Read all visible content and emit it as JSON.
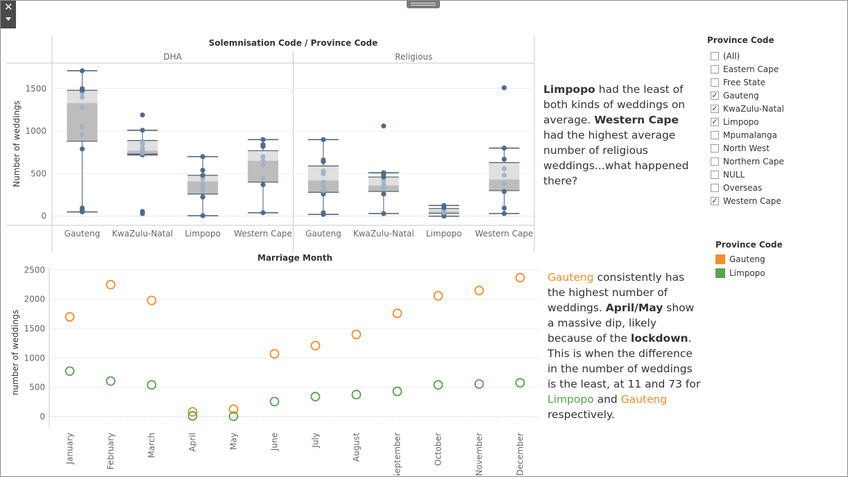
{
  "chart_data": [
    {
      "type": "boxplot",
      "title": "Solemnisation Code  /  Province Code",
      "ylabel": "Number of weddings",
      "ylim": [
        -100,
        1800
      ],
      "yticks": [
        0,
        500,
        1000,
        1500
      ],
      "panels": [
        {
          "name": "DHA",
          "groups": [
            {
              "category": "Gauteng",
              "min": 50,
              "q1": 880,
              "median": 1330,
              "q3": 1480,
              "max": 1710,
              "points": [
                50,
                70,
                95,
                790,
                960,
                1050,
                1280,
                1400,
                1450,
                1480,
                1500,
                1710
              ]
            },
            {
              "category": "KwaZulu-Natal",
              "min": 720,
              "q1": 730,
              "median": 770,
              "q3": 890,
              "max": 1010,
              "points": [
                30,
                55,
                720,
                740,
                760,
                780,
                800,
                850,
                880,
                1010,
                1190
              ]
            },
            {
              "category": "Limpopo",
              "min": 5,
              "q1": 260,
              "median": 410,
              "q3": 480,
              "max": 700,
              "points": [
                5,
                225,
                300,
                340,
                380,
                440,
                480,
                540,
                700
              ]
            },
            {
              "category": "Western Cape",
              "min": 40,
              "q1": 400,
              "median": 650,
              "q3": 770,
              "max": 900,
              "points": [
                40,
                370,
                440,
                600,
                650,
                700,
                820,
                840,
                900
              ]
            }
          ]
        },
        {
          "name": "Religious",
          "groups": [
            {
              "category": "Gauteng",
              "min": 20,
              "q1": 280,
              "median": 420,
              "q3": 590,
              "max": 900,
              "points": [
                20,
                40,
                260,
                300,
                350,
                400,
                500,
                530,
                640,
                660,
                900
              ]
            },
            {
              "category": "KwaZulu-Natal",
              "min": 30,
              "q1": 290,
              "median": 360,
              "q3": 460,
              "max": 510,
              "points": [
                30,
                260,
                330,
                370,
                420,
                460,
                490,
                510,
                1060
              ]
            },
            {
              "category": "Limpopo",
              "min": 0,
              "q1": 30,
              "median": 55,
              "q3": 90,
              "max": 125,
              "points": [
                0,
                20,
                40,
                60,
                80,
                100,
                125
              ]
            },
            {
              "category": "Western Cape",
              "min": 30,
              "q1": 300,
              "median": 430,
              "q3": 630,
              "max": 800,
              "points": [
                30,
                95,
                290,
                380,
                480,
                560,
                670,
                800,
                1510
              ]
            }
          ]
        }
      ]
    },
    {
      "type": "scatter",
      "title": "Marriage Month",
      "ylabel": "number of weddings",
      "ylim": [
        -180,
        2600
      ],
      "yticks": [
        0,
        500,
        1000,
        1500,
        2000,
        2500
      ],
      "categories": [
        "January",
        "February",
        "March",
        "April",
        "May",
        "June",
        "July",
        "August",
        "September",
        "October",
        "November",
        "December"
      ],
      "series": [
        {
          "name": "Gauteng",
          "color": "#f28e2b",
          "values": [
            1700,
            2250,
            1980,
            80,
            125,
            1070,
            1210,
            1400,
            1760,
            2060,
            2150,
            2370
          ]
        },
        {
          "name": "Limpopo",
          "color": "#59a14f",
          "values": [
            775,
            605,
            540,
            10,
            5,
            255,
            340,
            375,
            430,
            540,
            555,
            575
          ]
        }
      ]
    }
  ],
  "notes": {
    "top": [
      {
        "t": "Limpopo",
        "b": true
      },
      {
        "t": " had the least of both kinds of weddings on average. "
      },
      {
        "t": "Western Cape",
        "b": true
      },
      {
        "t": " had the highest average number of religious weddings...what happened there?"
      }
    ],
    "bottom": [
      {
        "t": "Gauteng",
        "c": "orange"
      },
      {
        "t": " consistently has the highest number of weddings. "
      },
      {
        "t": "April/May",
        "b": true
      },
      {
        "t": " show a massive dip, likely because of the "
      },
      {
        "t": "lockdown",
        "b": true
      },
      {
        "t": ". This is when the difference in the number of weddings is the least, at 11 and 73 for "
      },
      {
        "t": "Limpopo",
        "c": "green"
      },
      {
        "t": " and "
      },
      {
        "t": "Gauteng",
        "c": "orange"
      },
      {
        "t": " respectively."
      }
    ]
  },
  "filter": {
    "title": "Province Code",
    "items": [
      {
        "label": "(All)",
        "checked": false
      },
      {
        "label": "Eastern Cape",
        "checked": false
      },
      {
        "label": "Free State",
        "checked": false
      },
      {
        "label": "Gauteng",
        "checked": true
      },
      {
        "label": "KwaZulu-Natal",
        "checked": true
      },
      {
        "label": "Limpopo",
        "checked": true
      },
      {
        "label": "Mpumalanga",
        "checked": false
      },
      {
        "label": "North West",
        "checked": false
      },
      {
        "label": "Northern Cape",
        "checked": false
      },
      {
        "label": "NULL",
        "checked": false
      },
      {
        "label": "Overseas",
        "checked": false
      },
      {
        "label": "Western Cape",
        "checked": true
      }
    ]
  },
  "legend": {
    "title": "Province Code",
    "items": [
      {
        "label": "Gauteng",
        "color": "#f28e2b"
      },
      {
        "label": "Limpopo",
        "color": "#59a14f"
      }
    ]
  },
  "icons": {
    "close": "close-icon",
    "menu": "dropdown-arrow-icon",
    "drag": "drag-handle-icon"
  }
}
